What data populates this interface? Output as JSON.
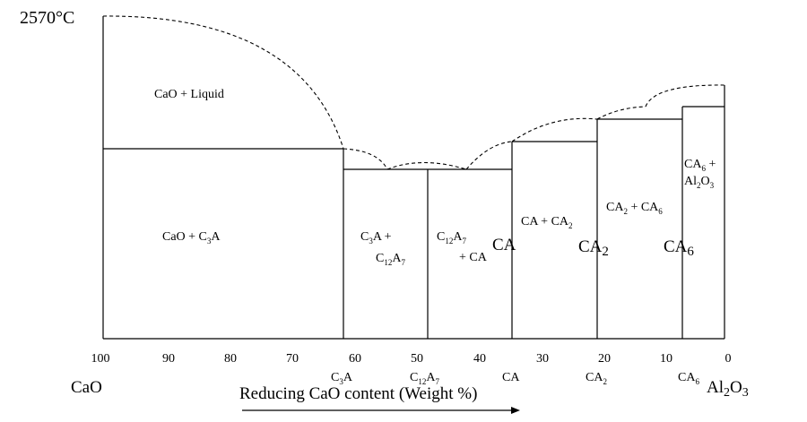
{
  "top_temperature": "2570°C",
  "x_axis": {
    "title": "Reducing CaO content (Weight %)",
    "ticks": [
      "100",
      "90",
      "80",
      "70",
      "60",
      "50",
      "40",
      "30",
      "20",
      "10",
      "0"
    ],
    "end_left": "CaO",
    "end_right": "Al2O3"
  },
  "compounds": [
    "C3A",
    "C12A7",
    "CA",
    "CA2",
    "CA6"
  ],
  "regions": {
    "cao_liquid": "CaO + Liquid",
    "cao_c3a": "CaO + C3A",
    "c3a_c12a7_line1": "C3A +",
    "c3a_c12a7_line2": "C12A7",
    "c12a7_ca_line1": "C12A7",
    "c12a7_ca_line2": "+ CA",
    "ca_ca2": "CA + CA2",
    "ca2_ca6": "CA2 + CA6",
    "ca6_al2o3_line1": "CA6 +",
    "ca6_al2o3_line2": "Al2O3"
  },
  "large_labels": [
    "CA",
    "CA2",
    "CA6"
  ]
}
